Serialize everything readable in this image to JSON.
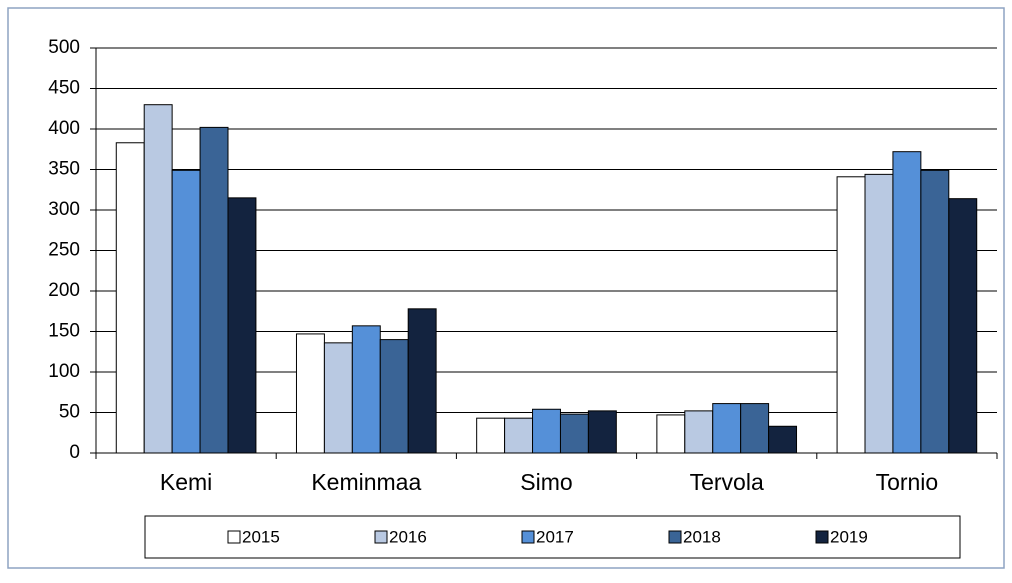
{
  "chart_data": {
    "type": "bar",
    "categories": [
      "Kemi",
      "Keminmaa",
      "Simo",
      "Tervola",
      "Tornio"
    ],
    "series": [
      {
        "name": "2015",
        "color": "#ffffff",
        "values": [
          383,
          147,
          43,
          47,
          341
        ]
      },
      {
        "name": "2016",
        "color": "#b9c9e2",
        "values": [
          430,
          136,
          43,
          52,
          344
        ]
      },
      {
        "name": "2017",
        "color": "#5590d8",
        "values": [
          349,
          157,
          54,
          61,
          372
        ]
      },
      {
        "name": "2018",
        "color": "#3a6496",
        "values": [
          402,
          140,
          48,
          61,
          349
        ]
      },
      {
        "name": "2019",
        "color": "#13233f",
        "values": [
          315,
          178,
          52,
          33,
          314
        ]
      }
    ],
    "ylim": [
      0,
      500
    ],
    "yticks": [
      0,
      50,
      100,
      150,
      200,
      250,
      300,
      350,
      400,
      450,
      500
    ],
    "grid": true,
    "legend": "bottom"
  }
}
